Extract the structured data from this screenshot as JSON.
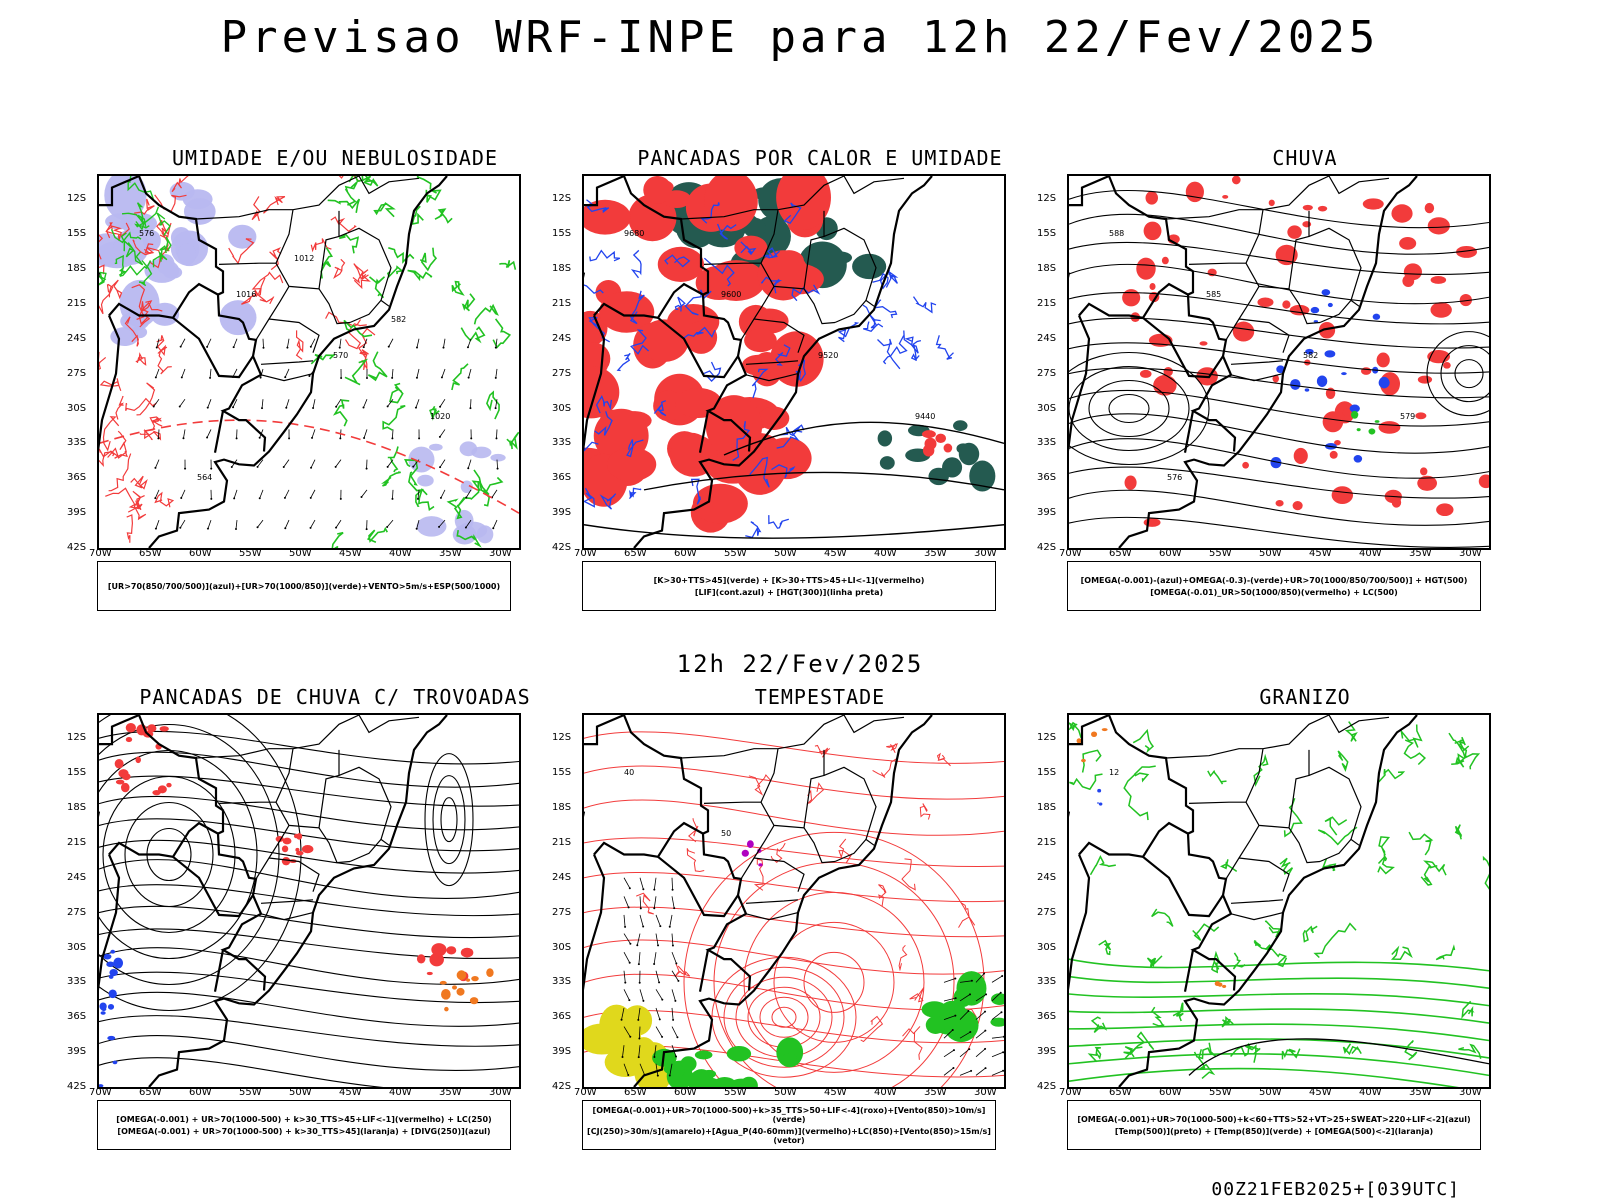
{
  "title": "Previsao WRF-INPE  para 12h 22/Fev/2025",
  "subtitle": "12h 22/Fev/2025",
  "footer": "00Z21FEB2025+[039UTC]",
  "lat_labels": [
    "12S",
    "15S",
    "18S",
    "21S",
    "24S",
    "27S",
    "30S",
    "33S",
    "36S",
    "39S",
    "42S"
  ],
  "lon_labels": [
    "70W",
    "65W",
    "60W",
    "55W",
    "50W",
    "45W",
    "40W",
    "35W",
    "30W"
  ],
  "panels": [
    {
      "title": "UMIDADE E/OU NEBULOSIDADE",
      "legend": [
        "[UR>70(850/700/500)](azul)+[UR>70(1000/850)](verde)+VENTO>5m/s+ESP(500/1000)"
      ],
      "contour_labels": [
        "576",
        "1016",
        "570",
        "1020",
        "564",
        "1012",
        "582"
      ]
    },
    {
      "title": "PANCADAS POR CALOR E UMIDADE",
      "legend": [
        "[K>30+TTS>45](verde) + [K>30+TTS>45+LI<-1](vermelho)",
        "[LIF](cont.azul) + [HGT(300)](linha preta)"
      ],
      "contour_labels": [
        "9680",
        "9600",
        "9520",
        "9440"
      ]
    },
    {
      "title": "CHUVA",
      "legend": [
        "[OMEGA(-0.001)-(azul)+OMEGA(-0.3)-(verde)+UR>70(1000/850/700/500)] + HGT(500)",
        "[OMEGA(-0.01)_UR>50(1000/850)(vermelho) + LC(500)"
      ],
      "contour_labels": [
        "588",
        "585",
        "582",
        "579",
        "576"
      ]
    },
    {
      "title": "PANCADAS DE CHUVA C/ TROVOADAS",
      "legend": [
        "[OMEGA(-0.001) + UR>70(1000-500) + k>30_TTS>45+LIF<-1](vermelho) + LC(250)",
        "[OMEGA(-0.001) + UR>70(1000-500) + k>30_TTS>45](laranja) + [DIVG(250)](azul)"
      ],
      "contour_labels": []
    },
    {
      "title": "TEMPESTADE",
      "legend": [
        "[OMEGA(-0.001)+UR>70(1000-500)+k>35_TTS>50+LIF<-4](roxo)+[Vento(850)>10m/s](verde)",
        "[CJ(250)>30m/s](amarelo)+[Agua_P(40-60mm)](vermelho)+LC(850)+[Vento(850)>15m/s](vetor)"
      ],
      "contour_labels": [
        "40",
        "50"
      ]
    },
    {
      "title": "GRANIZO",
      "legend": [
        "[OMEGA(-0.001)+UR>70(1000-500)+k<60+TTS>52+VT>25+SWEAT>220+LIF<-2](azul)",
        "[Temp(500)](preto) + [Temp(850)](verde) + [OMEGA(500)<-2](laranja)"
      ],
      "contour_labels": [
        "12"
      ]
    }
  ],
  "colors": {
    "red": "#f23b3b",
    "green": "#22c222",
    "blue": "#2244ee",
    "lavender": "#b8b8f0",
    "darkgreen": "#245a50",
    "yellow": "#e0d81c",
    "orange": "#f07820",
    "purple": "#b000c0"
  }
}
